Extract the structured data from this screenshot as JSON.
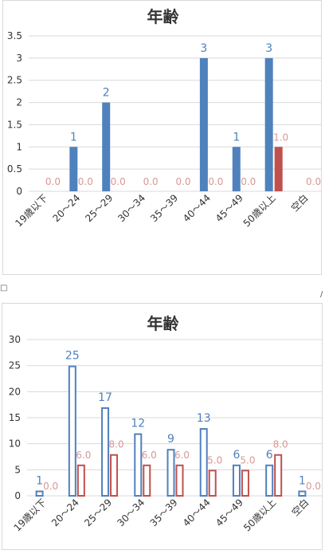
{
  "charts": [
    {
      "type": "bar",
      "title": "年齢",
      "categories": [
        "19歳以下",
        "20～24",
        "25～29",
        "30～34",
        "35～39",
        "40～44",
        "45～49",
        "50歳以上",
        "空白"
      ],
      "ylim": [
        0,
        3.5
      ],
      "yticks": [
        "0",
        "0.5",
        "1",
        "1.5",
        "2",
        "2.5",
        "3",
        "3.5"
      ],
      "gridlines": true,
      "bar_style": "filled",
      "series": [
        {
          "color": "#4f81bd",
          "values": [
            null,
            1,
            2,
            null,
            null,
            3,
            1,
            3,
            null
          ],
          "labels": [
            "",
            "1",
            "2",
            "",
            "",
            "3",
            "1",
            "3",
            ""
          ]
        },
        {
          "color": "#c0504d",
          "values": [
            0,
            0,
            0,
            0,
            0,
            0,
            0,
            1,
            0
          ],
          "labels": [
            "0.0",
            "0.0",
            "0.0",
            "0.0",
            "0.0",
            "0.0",
            "0.0",
            "1.0",
            "0.0"
          ]
        }
      ]
    },
    {
      "type": "bar",
      "title": "年齢",
      "categories": [
        "19歳以下",
        "20～24",
        "25～29",
        "30～34",
        "35～39",
        "40～44",
        "45～49",
        "50歳以上",
        "空白"
      ],
      "ylim": [
        0,
        30
      ],
      "yticks": [
        "0",
        "5",
        "10",
        "15",
        "20",
        "25",
        "30"
      ],
      "gridlines": true,
      "bar_style": "outline",
      "series": [
        {
          "color": "#4f81bd",
          "values": [
            1,
            25,
            17,
            12,
            9,
            13,
            6,
            6,
            1
          ],
          "labels": [
            "1",
            "25",
            "17",
            "12",
            "9",
            "13",
            "6",
            "6",
            "1"
          ]
        },
        {
          "color": "#c0504d",
          "values": [
            0,
            6,
            8,
            6,
            6,
            5,
            5,
            8,
            0
          ],
          "labels": [
            "0.0",
            "6.0",
            "8.0",
            "6.0",
            "6.0",
            "5.0",
            "5.0",
            "8.0",
            "0.0"
          ]
        }
      ]
    }
  ],
  "stray_marks": [
    "□",
    "/"
  ]
}
